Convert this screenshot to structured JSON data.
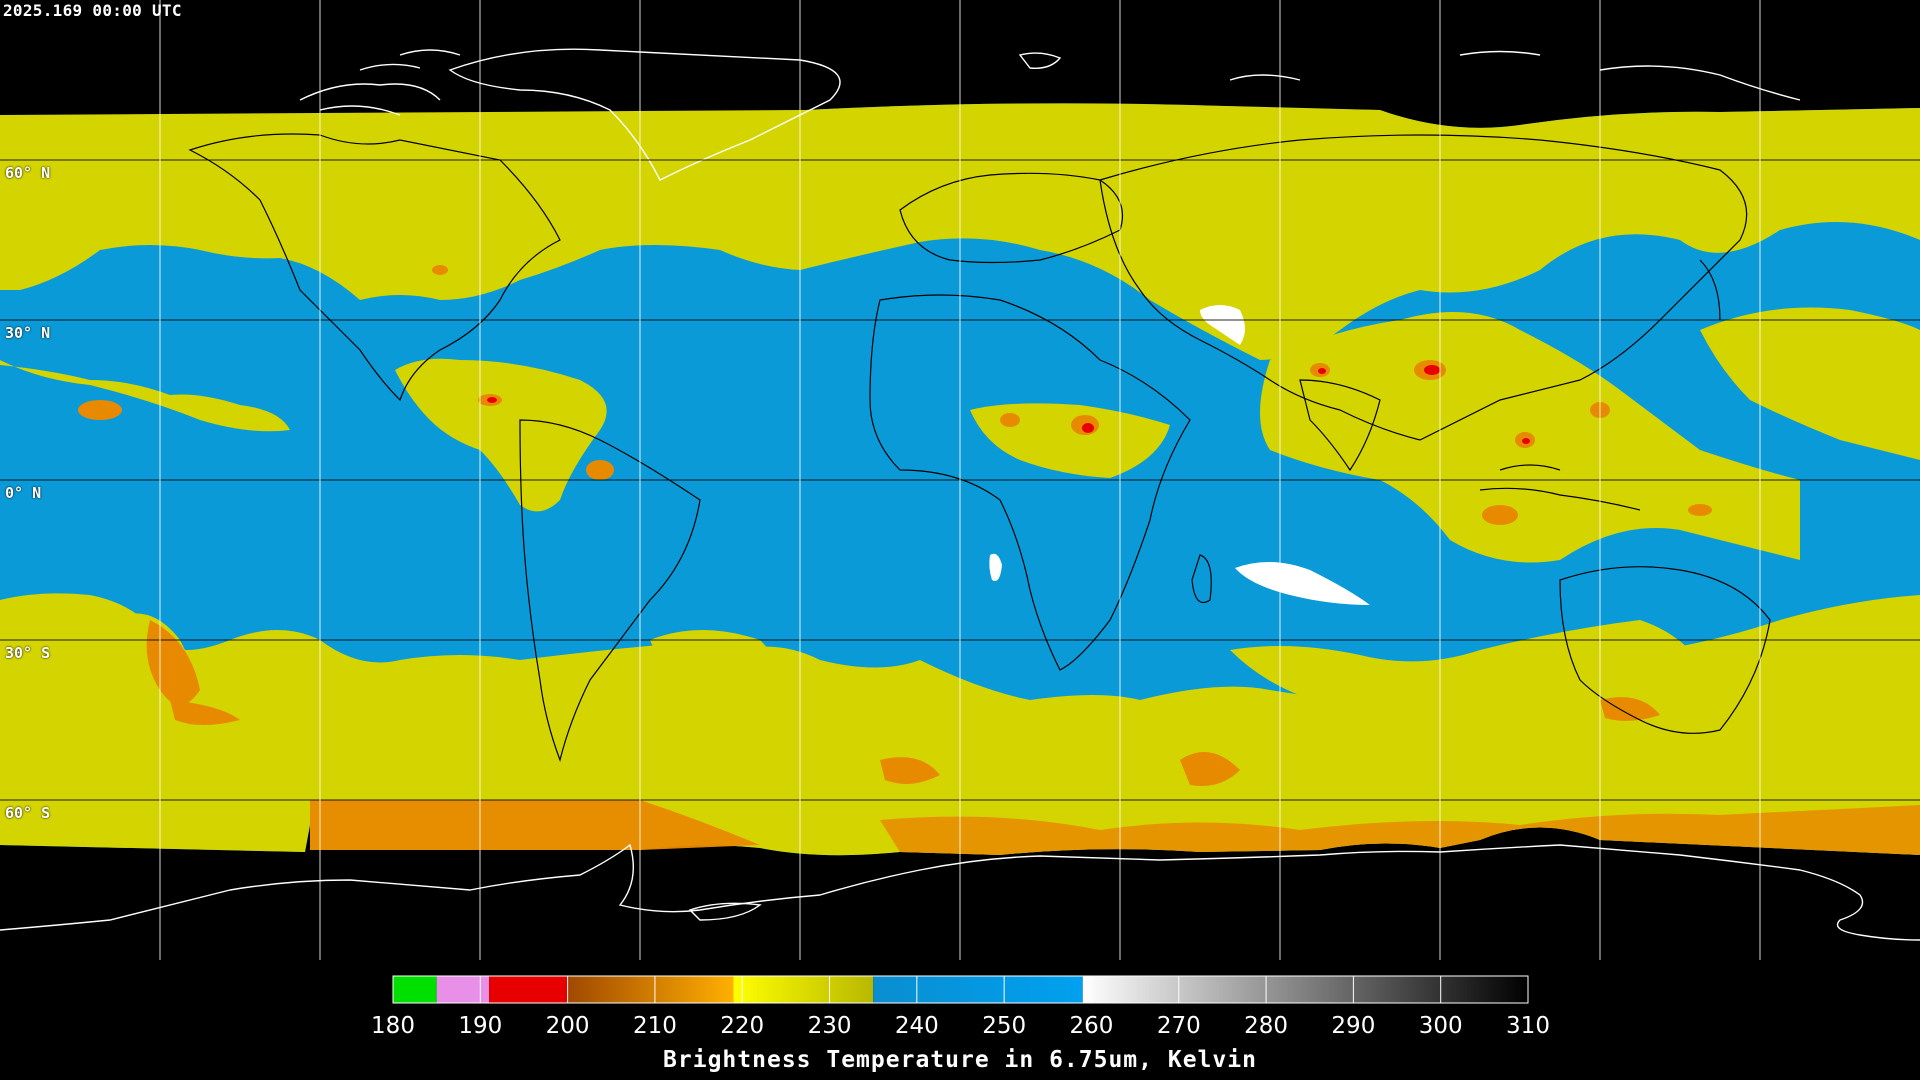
{
  "timestamp": "2025.169 00:00 UTC",
  "lat_labels": [
    "60° N",
    "30° N",
    "0° N",
    "30° S",
    "60° S"
  ],
  "map": {
    "background_color": "#000000",
    "moist_color": "#0a9ad8",
    "dry_color": "#d6d600",
    "cold_color": "#e88a00",
    "coastline_color": "#ffffff",
    "land_outline_color": "#000000",
    "grid_color": "#ffffff"
  },
  "colorbar": {
    "title": "Brightness Temperature in 6.75um, Kelvin",
    "min": 180,
    "max": 310,
    "ticks": [
      "180",
      "190",
      "200",
      "210",
      "220",
      "230",
      "240",
      "250",
      "260",
      "270",
      "280",
      "290",
      "300",
      "310"
    ],
    "segments": [
      {
        "from": 180,
        "to": 185,
        "color": "#00e000"
      },
      {
        "from": 185,
        "to": 191,
        "color": "#e890e8"
      },
      {
        "from": 191,
        "to": 200,
        "color": "#e80000"
      },
      {
        "from": 200,
        "to": 219,
        "color_from": "#a04800",
        "color_to": "#ffb000"
      },
      {
        "from": 219,
        "to": 235,
        "color_from": "#ffff00",
        "color_to": "#b8b800"
      },
      {
        "from": 235,
        "to": 259,
        "color_from": "#0a8ed0",
        "color_to": "#00a0f0"
      },
      {
        "from": 259,
        "to": 310,
        "color_from": "#ffffff",
        "color_to": "#000000"
      }
    ]
  }
}
